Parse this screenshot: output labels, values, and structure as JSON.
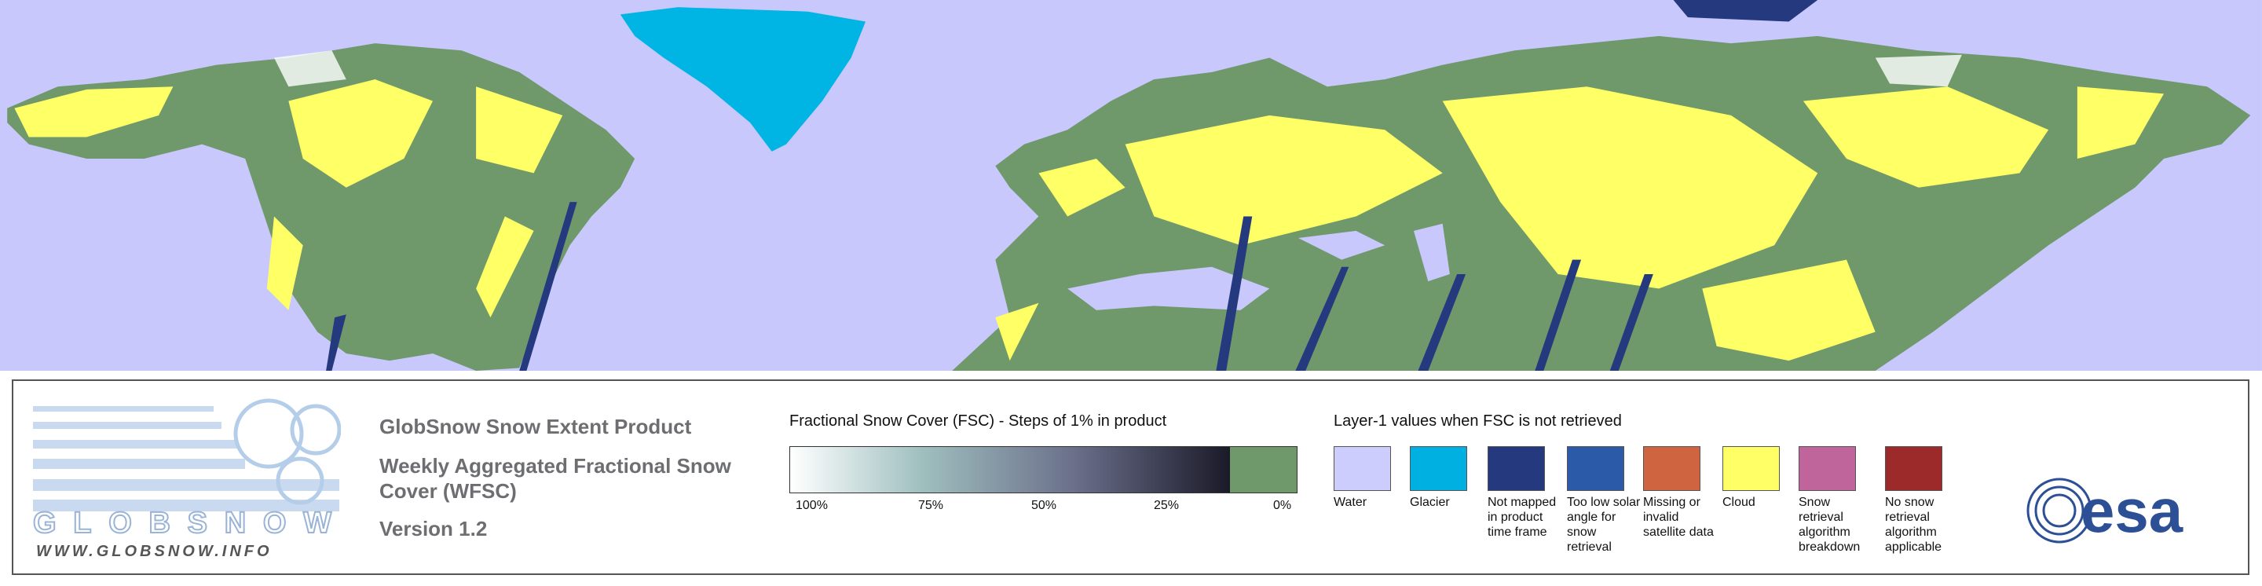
{
  "header": {
    "product": "GlobSnow Snow Extent Product",
    "subtitle": "Weekly Aggregated Fractional Snow Cover (WFSC)",
    "version": "Version 1.2"
  },
  "logo": {
    "name": "GLOBSNOW",
    "url": "WWW.GLOBSNOW.INFO",
    "agency": "esa"
  },
  "fsc_legend": {
    "title": "Fractional Snow Cover (FSC) - Steps of 1% in product",
    "ticks": [
      "100%",
      "75%",
      "50%",
      "25%",
      "0%"
    ]
  },
  "layer1_legend": {
    "title": "Layer-1 values when FSC is not retrieved",
    "items": [
      {
        "label": "Water",
        "color": "#cccdfd"
      },
      {
        "label": "Glacier",
        "color": "#00b0e0"
      },
      {
        "label": "Not mapped in product time frame",
        "color": "#253a7e"
      },
      {
        "label": "Too low solar angle for snow retrieval",
        "color": "#2a5aa8"
      },
      {
        "label": "Missing or invalid satellite data",
        "color": "#cf6540"
      },
      {
        "label": "Cloud",
        "color": "#ffff66"
      },
      {
        "label": "Snow retrieval algorithm breakdown",
        "color": "#c0649c"
      },
      {
        "label": "No snow retrieval algorithm applicable",
        "color": "#9c2a2a"
      }
    ]
  }
}
